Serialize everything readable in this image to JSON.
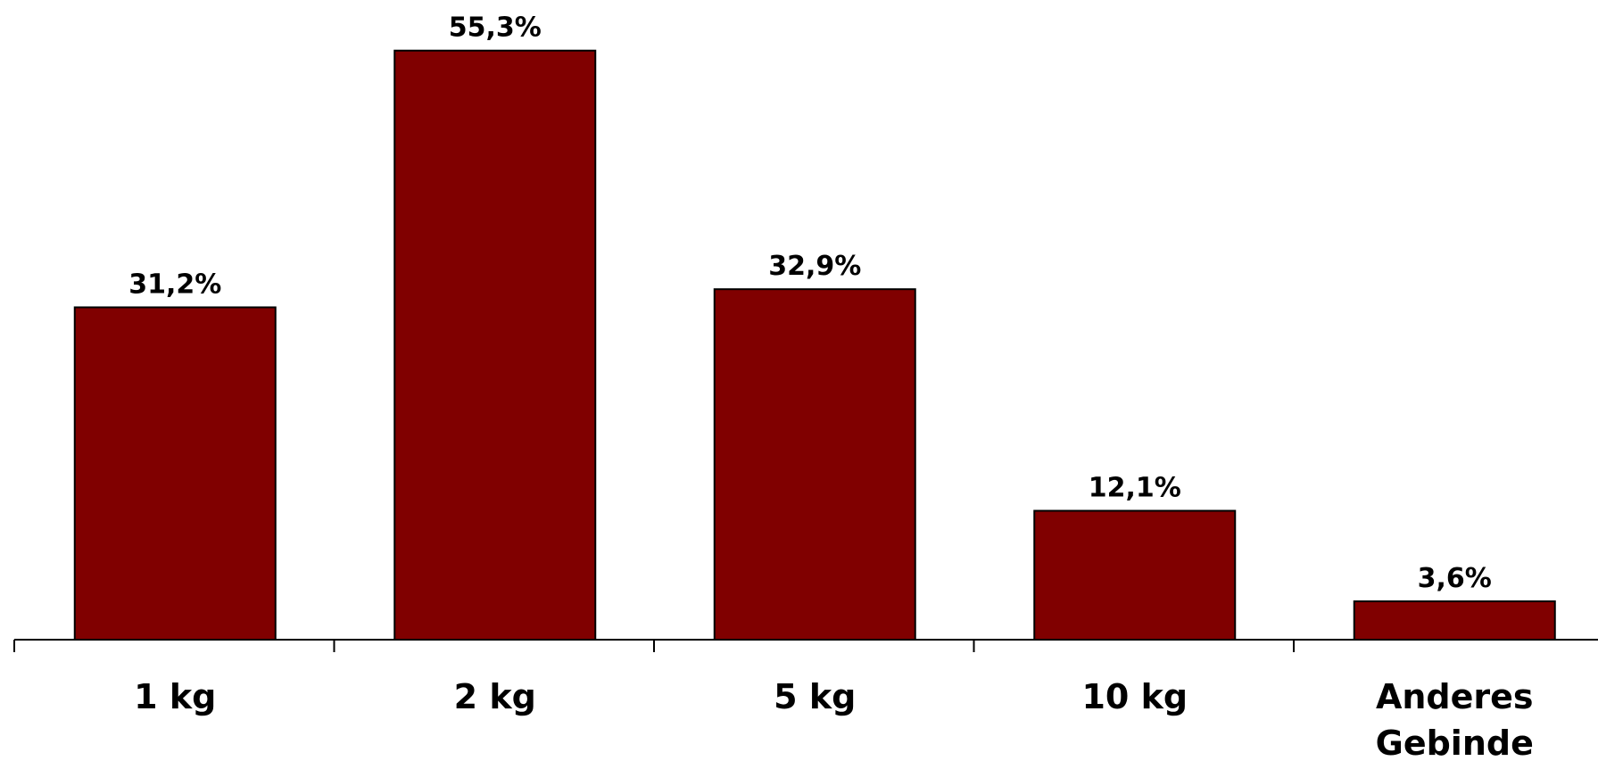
{
  "chart_data": {
    "type": "bar",
    "categories": [
      "1 kg",
      "2 kg",
      "5 kg",
      "10 kg",
      "Anderes Gebinde"
    ],
    "values": [
      31.2,
      55.3,
      32.9,
      12.1,
      3.6
    ],
    "value_labels": [
      "31,2%",
      "55,3%",
      "32,9%",
      "12,1%",
      "3,6%"
    ],
    "title": "",
    "xlabel": "",
    "ylabel": "",
    "ylim": [
      0,
      60
    ],
    "grid": false,
    "legend": "none",
    "bar_color": "#800000",
    "bar_edge_color": "#000000"
  }
}
